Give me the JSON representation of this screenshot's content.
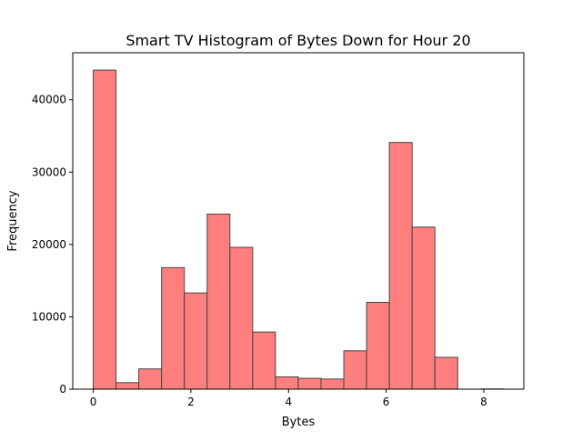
{
  "chart_data": {
    "type": "bar",
    "title": "Smart TV Histogram of Bytes Down for Hour 20",
    "xlabel": "Bytes",
    "ylabel": "Frequency",
    "xlim": [
      -0.42,
      8.82
    ],
    "ylim": [
      0,
      46500
    ],
    "xticks": [
      0,
      2,
      4,
      6,
      8
    ],
    "yticks": [
      0,
      10000,
      20000,
      30000,
      40000
    ],
    "bin_width": 0.4666,
    "bins": [
      {
        "start": 0.0,
        "count": 44100
      },
      {
        "start": 0.4666,
        "count": 900
      },
      {
        "start": 0.9332,
        "count": 2800
      },
      {
        "start": 1.3998,
        "count": 16800
      },
      {
        "start": 1.8664,
        "count": 13300
      },
      {
        "start": 2.333,
        "count": 24200
      },
      {
        "start": 2.7996,
        "count": 19600
      },
      {
        "start": 3.2662,
        "count": 7900
      },
      {
        "start": 3.7328,
        "count": 1700
      },
      {
        "start": 4.1994,
        "count": 1500
      },
      {
        "start": 4.666,
        "count": 1400
      },
      {
        "start": 5.1326,
        "count": 5300
      },
      {
        "start": 5.5992,
        "count": 12000
      },
      {
        "start": 6.0658,
        "count": 34100
      },
      {
        "start": 6.5324,
        "count": 22400
      },
      {
        "start": 6.999,
        "count": 4400
      },
      {
        "start": 7.4656,
        "count": 0
      },
      {
        "start": 7.9322,
        "count": 30
      }
    ],
    "bar_color": "#ff7f7f",
    "edge_color": "#444444",
    "grid": false,
    "legend": false
  }
}
